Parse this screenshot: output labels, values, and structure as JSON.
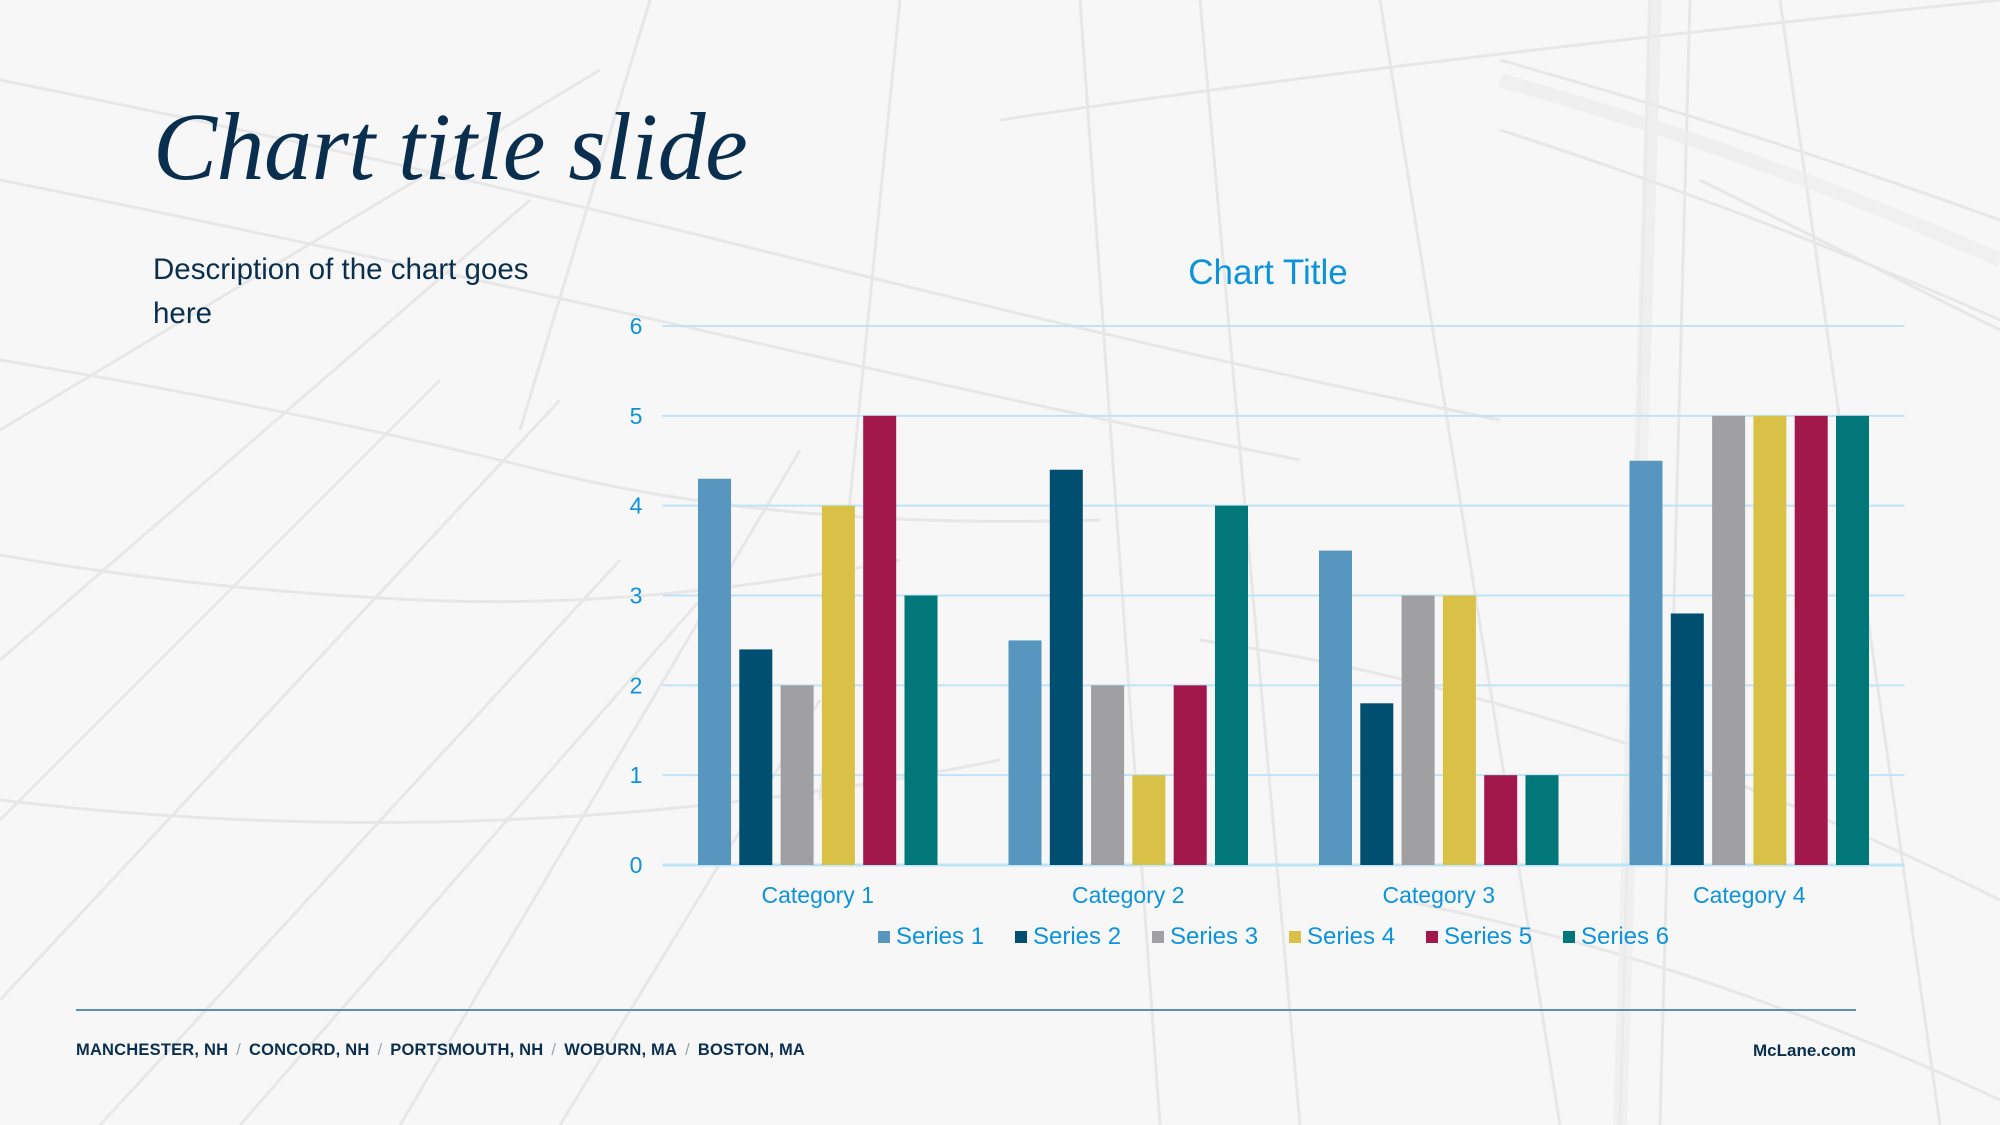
{
  "slide": {
    "title": "Chart title slide",
    "description": "Description of the chart goes here"
  },
  "footer": {
    "locations": [
      "MANCHESTER, NH",
      "CONCORD, NH",
      "PORTSMOUTH, NH",
      "WOBURN, MA",
      "BOSTON, MA"
    ],
    "separator": "/",
    "website": "McLane.com"
  },
  "colors": {
    "title_text": "#0a2f4e",
    "chart_text": "#0d93dc",
    "gridline": "#bfe3f7",
    "footer_rule": "#5b8fb9"
  },
  "chart_data": {
    "type": "bar",
    "title": "Chart Title",
    "xlabel": "",
    "ylabel": "",
    "categories": [
      "Category 1",
      "Category 2",
      "Category 3",
      "Category 4"
    ],
    "series": [
      {
        "name": "Series 1",
        "color": "#5796be",
        "values": [
          4.3,
          2.5,
          3.5,
          4.5
        ]
      },
      {
        "name": "Series 2",
        "color": "#004f70",
        "values": [
          2.4,
          4.4,
          1.8,
          2.8
        ]
      },
      {
        "name": "Series 3",
        "color": "#a0a0a2",
        "values": [
          2,
          2,
          3,
          5
        ]
      },
      {
        "name": "Series 4",
        "color": "#d9c147",
        "values": [
          4,
          1,
          3,
          5
        ]
      },
      {
        "name": "Series 5",
        "color": "#a3184b",
        "values": [
          5,
          2,
          1,
          5
        ]
      },
      {
        "name": "Series 6",
        "color": "#01777a",
        "values": [
          3,
          4,
          1,
          5
        ]
      }
    ],
    "ylim": [
      0,
      6
    ],
    "yticks": [
      0,
      1,
      2,
      3,
      4,
      5,
      6
    ],
    "grid": true,
    "legend_position": "bottom"
  }
}
